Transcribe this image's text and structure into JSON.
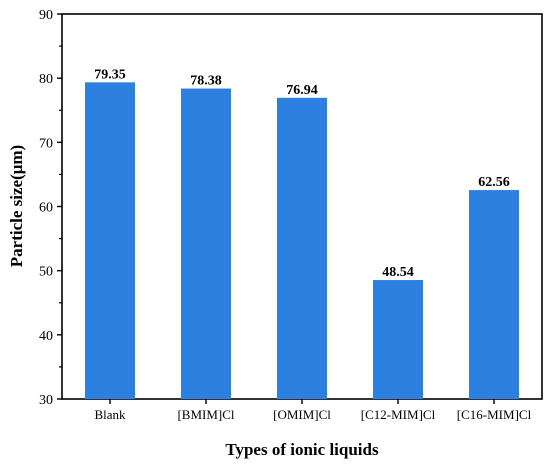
{
  "chart_data": {
    "type": "bar",
    "title": "",
    "xlabel": "Types of ionic liquids",
    "ylabel": "Particle size(μm)",
    "categories": [
      "Blank",
      "[BMIM]Cl",
      "[OMIM]Cl",
      "[C12-MIM]Cl",
      "[C16-MIM]Cl"
    ],
    "values": [
      79.35,
      78.38,
      76.94,
      48.54,
      62.56
    ],
    "value_labels": [
      "79.35",
      "78.38",
      "76.94",
      "48.54",
      "62.56"
    ],
    "ylim": [
      30,
      90
    ],
    "yticks": [
      30,
      40,
      50,
      60,
      70,
      80,
      90
    ],
    "bar_color": "#2e80e0",
    "grid": false,
    "legend": "none"
  }
}
